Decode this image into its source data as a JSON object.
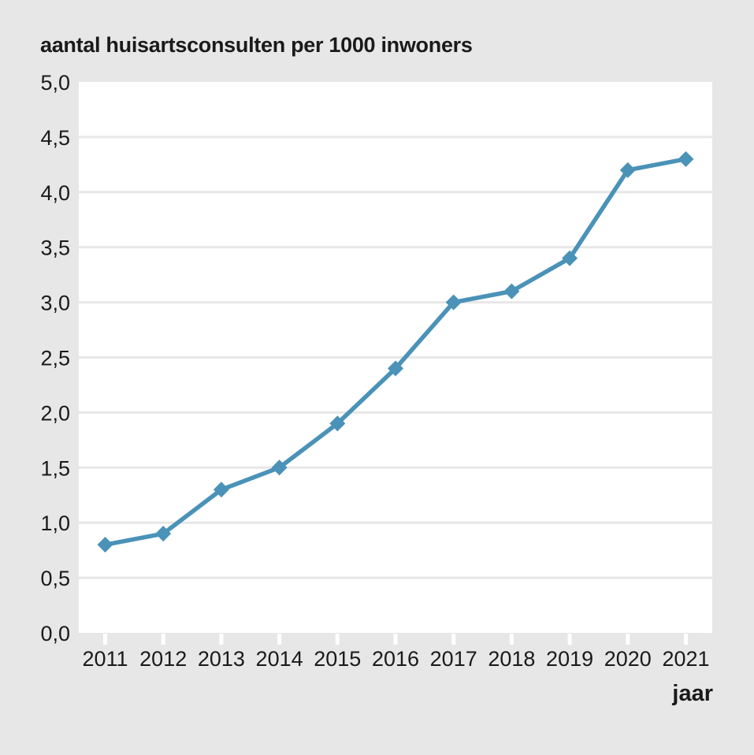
{
  "title": "aantal huisartsconsulten per 1000 inwoners",
  "chart_data": {
    "type": "line",
    "title": "aantal huisartsconsulten per 1000 inwoners",
    "xlabel": "jaar",
    "ylabel": "",
    "categories": [
      "2011",
      "2012",
      "2013",
      "2014",
      "2015",
      "2016",
      "2017",
      "2018",
      "2019",
      "2020",
      "2021"
    ],
    "values": [
      0.8,
      0.9,
      1.3,
      1.5,
      1.9,
      2.4,
      3.0,
      3.1,
      3.4,
      4.2,
      4.3
    ],
    "ylim": [
      0,
      5
    ],
    "y_tick_step": 0.5,
    "y_tick_labels": [
      "0,0",
      "0,5",
      "1,0",
      "1,5",
      "2,0",
      "2,5",
      "3,0",
      "3,5",
      "4,0",
      "4,5",
      "5,0"
    ],
    "decimal_separator": ",",
    "grid": "horizontal",
    "legend": "none",
    "marker": "diamond",
    "colors": {
      "line": "#4a92b8",
      "marker": "#4a92b8",
      "background": "#e7e7e7",
      "plot_background": "#ffffff",
      "gridline": "#e7e7e7",
      "tick_mark": "#ffffff",
      "text": "#1a1a1a"
    }
  }
}
